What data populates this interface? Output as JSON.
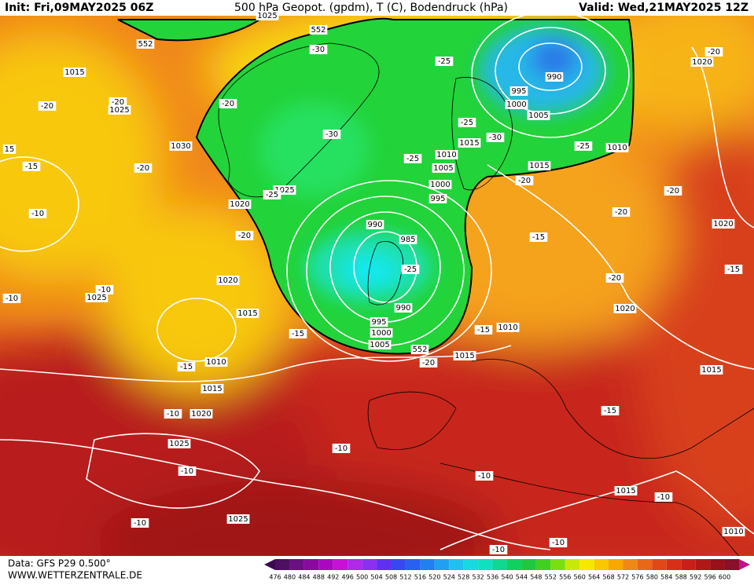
{
  "header": {
    "init": "Init: Fri,09MAY2025 06Z",
    "title": "500 hPa Geopot. (gpdm), T (C), Bodendruck (hPa)",
    "valid": "Valid: Wed,21MAY2025 12Z"
  },
  "footer": {
    "data_source": "Data: GFS P29 0.500°",
    "website": "WWW.WETTERZENTRALE.DE"
  },
  "colorbar": {
    "labels": [
      476,
      480,
      484,
      488,
      492,
      496,
      500,
      504,
      508,
      512,
      516,
      520,
      524,
      528,
      532,
      536,
      540,
      544,
      548,
      552,
      556,
      560,
      564,
      568,
      572,
      576,
      580,
      584,
      588,
      592,
      596,
      600
    ]
  },
  "map": {
    "contour_labels": [
      "1025",
      "552",
      "552",
      "-30",
      "1015",
      "-25",
      "990",
      "995",
      "1000",
      "1005",
      "-20",
      "-20",
      "1025",
      "-20",
      "-20",
      "1020",
      "-25",
      "1015",
      "-30",
      "-30",
      "1010",
      "-25",
      "1010",
      "1030",
      "15",
      "-15",
      "-20",
      "-25",
      "1005",
      "1015",
      "-20",
      "1000",
      "995",
      "-20",
      "1025",
      "-25",
      "1020",
      "-20",
      "-10",
      "990",
      "985",
      "-20",
      "-15",
      "1020",
      "-25",
      "-20",
      "-15",
      "1020",
      "-10",
      "1025",
      "-10",
      "990",
      "1020",
      "1015",
      "995",
      "1000",
      "-15",
      "1010",
      "-15",
      "1005",
      "552",
      "1015",
      "-20",
      "1010",
      "-15",
      "1015",
      "1015",
      "-10",
      "1020",
      "-15",
      "1025",
      "-10",
      "-10",
      "-10",
      "1015",
      "-10",
      "1025",
      "-10",
      "1010",
      "-10",
      "-10"
    ]
  }
}
